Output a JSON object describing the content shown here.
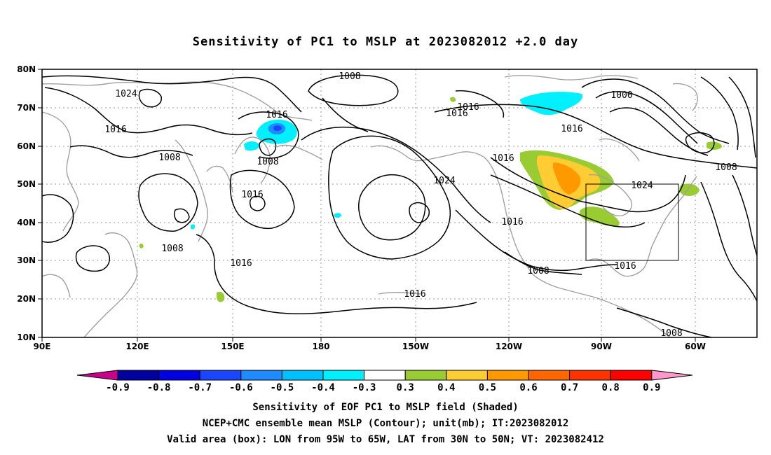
{
  "title": "Sensitivity of PC1 to MSLP at 2023082012 +2.0 day",
  "lat_labels": [
    "80N",
    "70N",
    "60N",
    "50N",
    "40N",
    "30N",
    "20N",
    "10N"
  ],
  "lon_labels": [
    "90E",
    "120E",
    "150E",
    "180",
    "150W",
    "120W",
    "90W",
    "60W"
  ],
  "contour_labels": {
    "c1008_top": "1008",
    "c1024_left": "1024",
    "c1016_left": "1016",
    "c1016_kam": "1016",
    "c1008_kam": "1008",
    "c1008_w": "1008",
    "c1016_mid": "1016",
    "c1008_sw": "1008",
    "c1016_sw": "1016",
    "c1016_alaska": "1016",
    "c1016_alaska2": "1016",
    "c1016_can": "1016",
    "c1000_top": "1000",
    "c1016_bc": "1016",
    "c1024_pac": "1024",
    "c1024_east": "1024",
    "c1008_east": "1008",
    "c1016_calif": "1016",
    "c1008_mex": "1008",
    "c1016_box": "1016",
    "c1016_south": "1016",
    "c1008_carib": "1008"
  },
  "colorbar": {
    "labels": [
      "-0.9",
      "-0.8",
      "-0.7",
      "-0.6",
      "-0.5",
      "-0.4",
      "-0.3",
      "0.3",
      "0.4",
      "0.5",
      "0.6",
      "0.7",
      "0.8",
      "0.9"
    ],
    "colors": [
      "#0000a0",
      "#0000e0",
      "#1a46ff",
      "#1e8cff",
      "#00c0ff",
      "#00f0ff",
      "#ffffff",
      "#99cc33",
      "#ffcc33",
      "#ff9900",
      "#ff6600",
      "#ff3300",
      "#ff0000"
    ],
    "low_end_color": "#c8008c",
    "high_end_color": "#ff99cc"
  },
  "captions": {
    "line1": "Sensitivity of EOF PC1 to MSLP field (Shaded)",
    "line2": "NCEP+CMC ensemble mean MSLP (Contour); unit(mb); IT:2023082012",
    "line3": "Valid area (box): LON from 95W to 65W, LAT from 30N to 50N; VT: 2023082412"
  }
}
